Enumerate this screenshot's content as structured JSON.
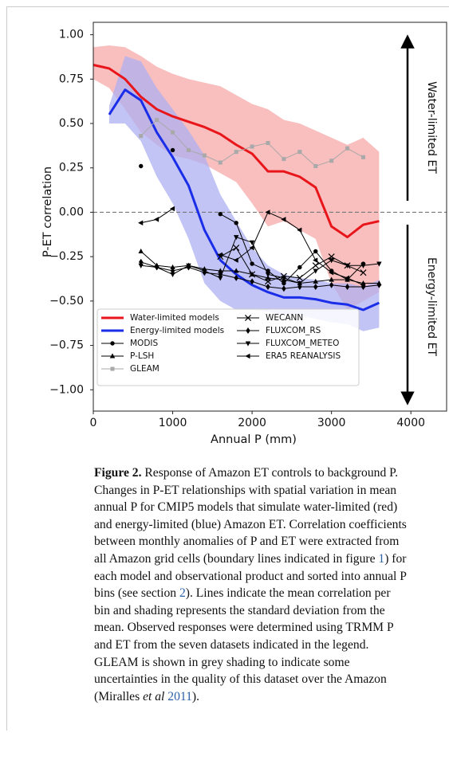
{
  "chart_data": {
    "type": "line",
    "xlabel": "Annual P (mm)",
    "ylabel": "P-ET correlation",
    "xlim": [
      0,
      4450
    ],
    "ylim": [
      -1.12,
      1.07
    ],
    "xticks": [
      0,
      1000,
      2000,
      3000,
      4000
    ],
    "yticks": [
      {
        "value": 1,
        "label": "1.00"
      },
      {
        "value": 0.75,
        "label": "0.75"
      },
      {
        "value": 0.5,
        "label": "0.50"
      },
      {
        "value": 0.25,
        "label": "0.25"
      },
      {
        "value": 0,
        "label": "0.00"
      },
      {
        "value": -0.25,
        "label": "−0.25"
      },
      {
        "value": -0.5,
        "label": "−0.50"
      },
      {
        "value": -0.75,
        "label": "−0.75"
      },
      {
        "value": -1,
        "label": "−1.00"
      }
    ],
    "hline": 0,
    "annotations": [
      "Water-limited ET",
      "Energy-limited ET"
    ],
    "series": [
      {
        "name": "Water-limited models",
        "color": "#e8161b",
        "band_color": "#f7a8a8",
        "marker": "none",
        "x": [
          0,
          200,
          400,
          600,
          800,
          1000,
          1200,
          1400,
          1600,
          1800,
          2000,
          2200,
          2400,
          2600,
          2800,
          3000,
          3200,
          3400,
          3600
        ],
        "values": [
          0.83,
          0.81,
          0.75,
          0.65,
          0.58,
          0.54,
          0.51,
          0.48,
          0.44,
          0.38,
          0.33,
          0.23,
          0.23,
          0.2,
          0.14,
          -0.08,
          -0.14,
          -0.07,
          -0.05
        ],
        "upper": [
          0.93,
          0.94,
          0.93,
          0.88,
          0.82,
          0.78,
          0.75,
          0.73,
          0.71,
          0.66,
          0.61,
          0.58,
          0.52,
          0.5,
          0.46,
          0.42,
          0.38,
          0.42,
          0.34
        ],
        "lower": [
          0.75,
          0.7,
          0.58,
          0.45,
          0.38,
          0.32,
          0.3,
          0.27,
          0.22,
          0.17,
          0.05,
          -0.08,
          -0.05,
          -0.1,
          -0.15,
          -0.4,
          -0.55,
          -0.5,
          -0.45
        ]
      },
      {
        "name": "Energy-limited models",
        "color": "#1a2de8",
        "band_color": "#aeb0f2",
        "marker": "none",
        "x": [
          200,
          400,
          600,
          800,
          1000,
          1200,
          1400,
          1600,
          1800,
          2000,
          2200,
          2400,
          2600,
          2800,
          3000,
          3200,
          3400,
          3600
        ],
        "values": [
          0.55,
          0.69,
          0.63,
          0.45,
          0.31,
          0.15,
          -0.1,
          -0.27,
          -0.35,
          -0.41,
          -0.45,
          -0.48,
          -0.48,
          -0.49,
          -0.51,
          -0.52,
          -0.55,
          -0.51
        ],
        "upper": [
          0.6,
          0.88,
          0.85,
          0.7,
          0.58,
          0.46,
          0.32,
          0.1,
          -0.05,
          -0.2,
          -0.3,
          -0.35,
          -0.37,
          -0.38,
          -0.4,
          -0.4,
          -0.42,
          -0.38
        ],
        "lower": [
          0.5,
          0.5,
          0.4,
          0.2,
          0.05,
          -0.15,
          -0.4,
          -0.5,
          -0.55,
          -0.55,
          -0.56,
          -0.58,
          -0.58,
          -0.6,
          -0.62,
          -0.63,
          -0.67,
          -0.65
        ]
      },
      {
        "name": "MODIS",
        "color": "#000000",
        "marker": "circle",
        "x": [
          600,
          800,
          1000,
          1200,
          1400,
          1600,
          1800,
          2000,
          2200,
          2400,
          2600,
          2800,
          3000,
          3200,
          3400
        ],
        "values": [
          0.26,
          null,
          0.35,
          null,
          null,
          -0.01,
          -0.06,
          -0.29,
          -0.33,
          -0.4,
          -0.31,
          -0.22,
          -0.33,
          -0.38,
          -0.29
        ]
      },
      {
        "name": "P-LSH",
        "color": "#000000",
        "marker": "triangle-up",
        "x": [
          600,
          800,
          1000,
          1200,
          1400,
          1600,
          1800,
          2000,
          2200,
          2400,
          2600,
          2800,
          3000,
          3200,
          3400,
          3600
        ],
        "values": [
          -0.22,
          -0.3,
          -0.31,
          -0.3,
          -0.32,
          -0.33,
          -0.33,
          -0.35,
          -0.37,
          -0.38,
          -0.4,
          -0.39,
          -0.38,
          -0.38,
          -0.4,
          -0.4
        ]
      },
      {
        "name": "GLEAM",
        "color": "#a9a9a9",
        "marker": "square",
        "x": [
          600,
          800,
          1000,
          1200,
          1400,
          1600,
          1800,
          2000,
          2200,
          2400,
          2600,
          2800,
          3000,
          3200,
          3400
        ],
        "values": [
          0.43,
          0.52,
          0.45,
          0.35,
          0.32,
          0.28,
          0.34,
          0.37,
          0.39,
          0.3,
          0.34,
          0.26,
          0.29,
          0.36,
          0.31
        ]
      },
      {
        "name": "WECANN",
        "color": "#000000",
        "marker": "x",
        "x": [
          1600,
          1800,
          2000,
          2200,
          2400,
          2600,
          2800,
          3000,
          3200,
          3400
        ],
        "values": [
          -0.25,
          -0.2,
          -0.35,
          -0.39,
          -0.36,
          -0.37,
          -0.3,
          -0.25,
          -0.3,
          -0.34
        ]
      },
      {
        "name": "FLUXCOM_RS",
        "color": "#000000",
        "marker": "diamond",
        "x": [
          600,
          800,
          1000,
          1200,
          1400,
          1600,
          1800,
          2000,
          2200,
          2400,
          2600,
          2800,
          3000,
          3200,
          3400,
          3600
        ],
        "values": [
          -0.28,
          -0.31,
          -0.33,
          -0.31,
          -0.34,
          -0.35,
          -0.37,
          -0.39,
          -0.42,
          -0.43,
          -0.42,
          -0.42,
          -0.41,
          -0.42,
          -0.42,
          -0.41
        ]
      },
      {
        "name": "FLUXCOM_METEO",
        "color": "#000000",
        "marker": "triangle-down",
        "x": [
          600,
          800,
          1000,
          1200,
          1400,
          1600,
          1800,
          2000,
          2200,
          2400,
          2600,
          2800,
          3000,
          3200,
          3400,
          3600
        ],
        "values": [
          -0.3,
          -0.31,
          -0.35,
          -0.3,
          -0.33,
          -0.37,
          -0.14,
          -0.17,
          -0.35,
          -0.37,
          -0.4,
          -0.33,
          -0.27,
          -0.3,
          -0.3,
          -0.29
        ]
      },
      {
        "name": "ERA5 REANALYSIS",
        "color": "#000000",
        "marker": "triangle-left",
        "x": [
          600,
          800,
          1000,
          1200,
          1400,
          1600,
          1800,
          2000,
          2200,
          2400,
          2600,
          2800,
          3000,
          3200,
          3400
        ],
        "values": [
          -0.06,
          -0.04,
          0.02,
          null,
          null,
          -0.24,
          -0.27,
          -0.2,
          0,
          -0.04,
          -0.1,
          -0.27,
          -0.34,
          -0.37,
          -0.41
        ]
      }
    ]
  },
  "caption": {
    "parts": [
      "Figure 2.",
      " Response of Amazon ET controls to background P. Changes in P-ET relationships with spatial variation in mean annual P for CMIP5 models that simulate water-limited (red) and energy-limited (blue) Amazon ET. Correlation coefficients between monthly anomalies of P and ET were extracted from all Amazon grid cells (boundary lines indicated in figure ",
      "1",
      ") for each model and observational product and sorted into annual P bins (see section ",
      "2",
      "). Lines indicate the mean correlation per bin and shading represents the standard deviation from the mean. Observed responses were determined using TRMM P and ET from the seven datasets indicated in the legend. GLEAM is shown in grey shading to indicate some uncertainties in the quality of this dataset over the Amazon (Miralles ",
      "et al",
      " ",
      "2011",
      ")."
    ]
  }
}
